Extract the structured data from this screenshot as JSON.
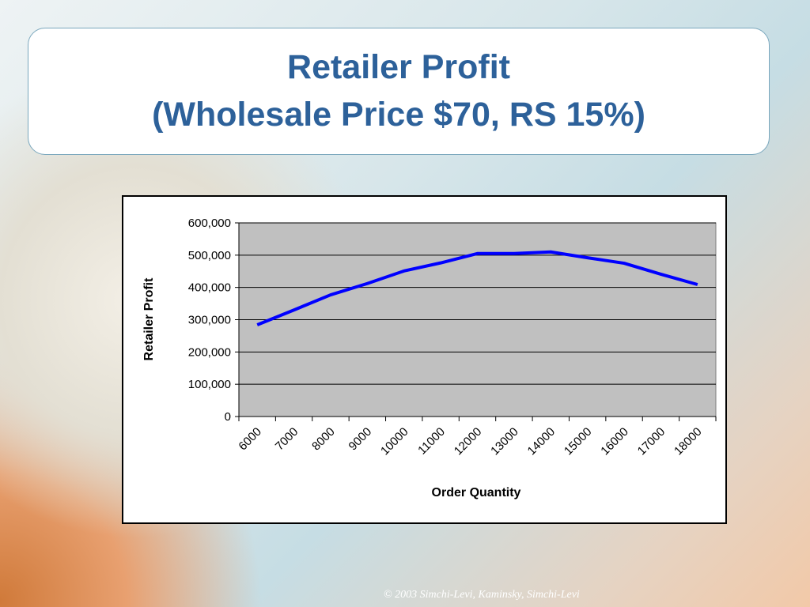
{
  "slide": {
    "title": [
      "Retailer Profit",
      "(Wholesale Price $70, RS 15%)"
    ],
    "footer": "© 2003 Simchi-Levi, Kaminsky, Simchi-Levi"
  },
  "chart_data": {
    "type": "line",
    "x_label": "Order Quantity",
    "y_label": "Retailer Profit",
    "categories": [
      "6000",
      "7000",
      "8000",
      "9000",
      "10000",
      "11000",
      "12000",
      "13000",
      "14000",
      "15000",
      "16000",
      "17000",
      "18000"
    ],
    "series": [
      {
        "name": "Retailer Profit",
        "color": "#0000ff",
        "values": [
          284000,
          330000,
          377000,
          412000,
          451000,
          476000,
          505000,
          505000,
          510000,
          492000,
          475000,
          441000,
          409000
        ]
      }
    ],
    "ylim": [
      0,
      600000
    ],
    "yticks": [
      0,
      {
        "value": 100000,
        "label": "100,000"
      },
      {
        "value": 200000,
        "label": "200,000"
      },
      {
        "value": 300000,
        "label": "300,000"
      },
      {
        "value": 400000,
        "label": "400,000"
      },
      {
        "value": 500000,
        "label": "500,000"
      },
      {
        "value": 600000,
        "label": "600,000"
      }
    ],
    "grid": true,
    "legend": false
  }
}
